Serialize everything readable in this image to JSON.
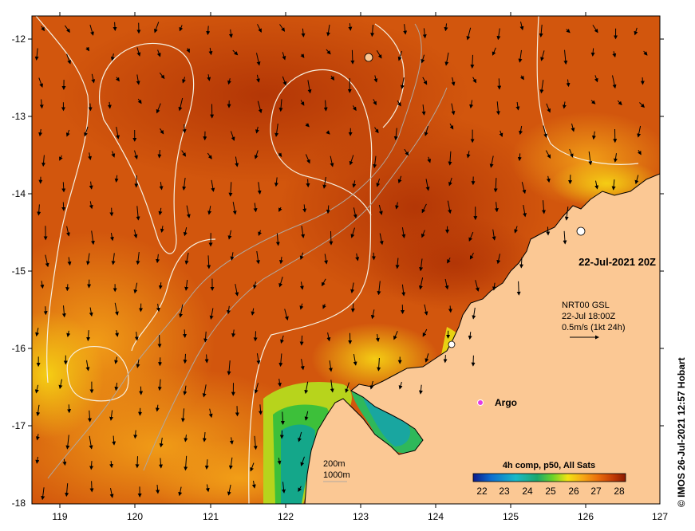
{
  "map": {
    "x_ticks": [
      "119",
      "120",
      "121",
      "122",
      "123",
      "124",
      "125",
      "126",
      "127"
    ],
    "y_ticks": [
      "-12",
      "-13",
      "-14",
      "-15",
      "-16",
      "-17",
      "-18"
    ],
    "date_label": "22-Jul-2021 20Z",
    "current_info": {
      "line1": "NRT00 GSL",
      "line2": "22-Jul 18:00Z",
      "line3": "0.5m/s (1kt 24h)"
    },
    "argo_label": "Argo",
    "contour_labels": {
      "c200": "200m",
      "c1000": "1000m"
    },
    "colorbar": {
      "title": "4h comp, p50, All Sats",
      "ticks": [
        "22",
        "23",
        "24",
        "25",
        "26",
        "27",
        "28"
      ],
      "colors": [
        "#0b1a8c",
        "#0d6fd0",
        "#19b9c8",
        "#1aa86c",
        "#6ad32a",
        "#f2e312",
        "#f7a816",
        "#ea6d0b",
        "#c23a05",
        "#8a1a02"
      ]
    },
    "credit": "© IMOS 26-Jul-2021 12:57 Hobart",
    "colors": {
      "ocean_warm": "#d2560d",
      "ocean_hot": "#b83a08",
      "ocean_mid": "#e0780f",
      "ocean_cool": "#f09010",
      "land": "#fbc894",
      "contour": "#f7f0e0"
    }
  }
}
